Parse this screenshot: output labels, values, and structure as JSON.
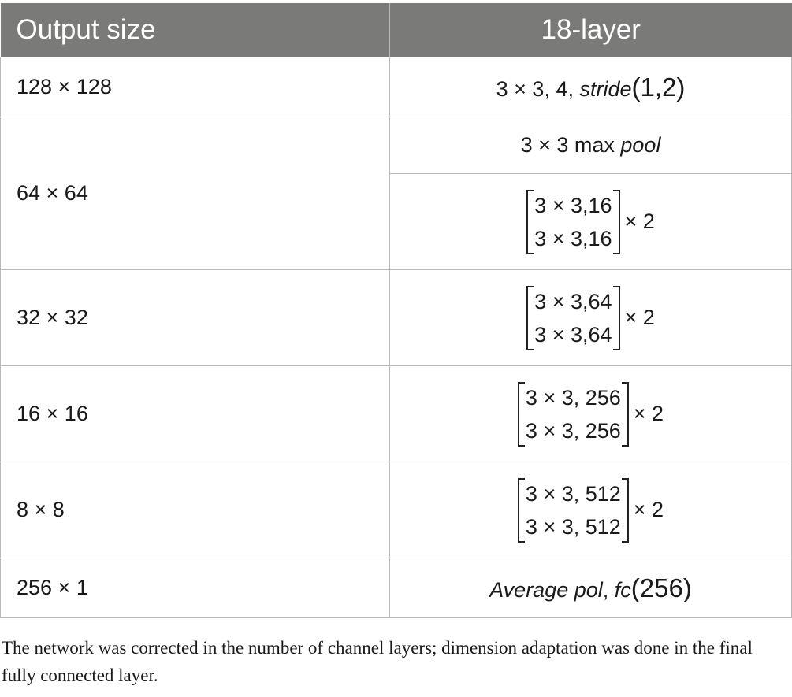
{
  "table": {
    "headers": [
      "Output size",
      "18-layer"
    ],
    "rows": [
      {
        "output_size": "128 × 128",
        "layer": {
          "pre": "3 × 3, 4, ",
          "italic": "stride",
          "paren": "(1,2)"
        }
      },
      {
        "output_size": "64 × 64",
        "pool": {
          "pre": "3 × 3 max ",
          "italic": "pool"
        },
        "block": {
          "lines": [
            "3 × 3,16",
            "3 × 3,16"
          ],
          "mult": "× 2"
        }
      },
      {
        "output_size": "32 × 32",
        "block": {
          "lines": [
            "3 × 3,64",
            "3 × 3,64"
          ],
          "mult": "× 2"
        }
      },
      {
        "output_size": "16 × 16",
        "block": {
          "lines": [
            "3 × 3, 256",
            "3 × 3, 256"
          ],
          "mult": "× 2"
        }
      },
      {
        "output_size": "8 × 8",
        "block": {
          "lines": [
            "3 × 3, 512",
            "3 × 3, 512"
          ],
          "mult": "× 2"
        }
      },
      {
        "output_size": "256 × 1",
        "layer": {
          "italic": "Average pol",
          "mid": ", ",
          "italic2": "fc",
          "paren": "(256)"
        }
      }
    ]
  },
  "footnote": "The network was corrected in the number of channel layers; dimension adaptation was done in the final fully connected layer."
}
